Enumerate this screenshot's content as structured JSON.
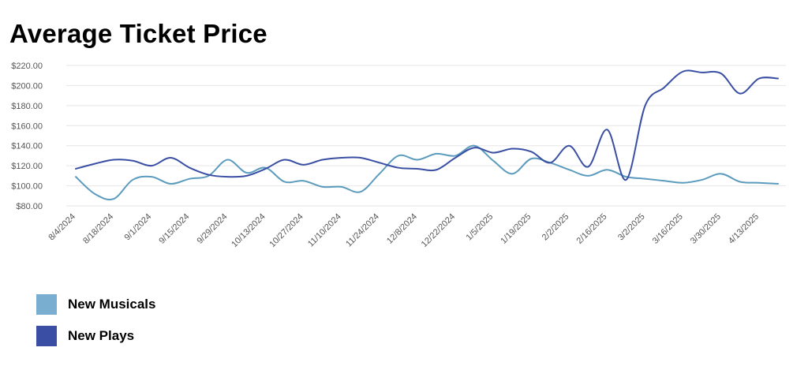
{
  "page": {
    "title": "Average Ticket Price"
  },
  "chart_data": {
    "type": "line",
    "title": "Average Ticket Price",
    "xlabel": "",
    "ylabel": "",
    "ylim": [
      80,
      220
    ],
    "ytick_values": [
      80,
      100,
      120,
      140,
      160,
      180,
      200,
      220
    ],
    "ytick_labels": [
      "$80.00",
      "$100.00",
      "$120.00",
      "$140.00",
      "$160.00",
      "$180.00",
      "$200.00",
      "$220.00"
    ],
    "grid": true,
    "legend_position": "bottom-left",
    "categories": [
      "8/4/2024",
      "8/11/2024",
      "8/18/2024",
      "8/25/2024",
      "9/1/2024",
      "9/8/2024",
      "9/15/2024",
      "9/22/2024",
      "9/29/2024",
      "10/6/2024",
      "10/13/2024",
      "10/20/2024",
      "10/27/2024",
      "11/3/2024",
      "11/10/2024",
      "11/17/2024",
      "11/24/2024",
      "12/1/2024",
      "12/8/2024",
      "12/15/2024",
      "12/22/2024",
      "12/29/2024",
      "1/5/2025",
      "1/12/2025",
      "1/19/2025",
      "1/26/2025",
      "2/2/2025",
      "2/9/2025",
      "2/16/2025",
      "2/23/2025",
      "3/2/2025",
      "3/9/2025",
      "3/16/2025",
      "3/23/2025",
      "3/30/2025",
      "4/6/2025",
      "4/13/2025",
      "4/20/2025"
    ],
    "shown_tick_labels": [
      "8/4/2024",
      "8/18/2024",
      "9/1/2024",
      "9/15/2024",
      "9/29/2024",
      "10/13/2024",
      "10/27/2024",
      "11/10/2024",
      "11/24/2024",
      "12/8/2024",
      "12/22/2024",
      "1/5/2025",
      "1/19/2025",
      "2/2/2025",
      "2/16/2025",
      "3/2/2025",
      "3/16/2025",
      "3/30/2025",
      "4/13/2025"
    ],
    "series": [
      {
        "name": "New Musicals",
        "color": "#5b9bbd",
        "values": [
          109,
          92,
          87,
          106,
          109,
          102,
          107,
          110,
          126,
          113,
          118,
          104,
          105,
          99,
          99,
          94,
          112,
          130,
          126,
          132,
          130,
          140,
          125,
          112,
          127,
          123,
          116,
          110,
          116,
          109,
          107,
          105,
          103,
          106,
          112,
          104,
          103,
          102
        ]
      },
      {
        "name": "New Plays",
        "color": "#3a4fa3",
        "values": [
          117,
          122,
          126,
          125,
          120,
          128,
          118,
          111,
          109,
          110,
          117,
          126,
          121,
          126,
          128,
          128,
          123,
          118,
          117,
          116,
          128,
          138,
          133,
          137,
          134,
          123,
          140,
          119,
          156,
          106,
          180,
          198,
          214,
          213,
          212,
          192,
          207,
          207
        ]
      }
    ]
  },
  "legend": {
    "items": [
      {
        "label": "New Musicals",
        "color": "#7aaed0"
      },
      {
        "label": "New Plays",
        "color": "#3a4fa3"
      }
    ]
  }
}
